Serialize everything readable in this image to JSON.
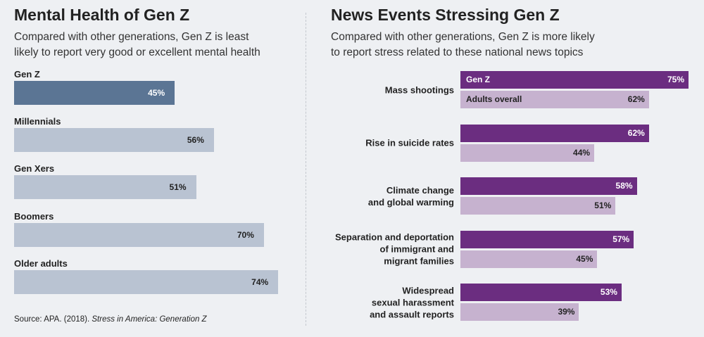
{
  "chart_data": [
    {
      "type": "bar",
      "orientation": "horizontal",
      "title": "Mental Health of Gen Z",
      "subtitle": "Compared with other generations, Gen Z is least\nlikely to report very good or excellent mental health",
      "categories": [
        "Gen Z",
        "Millennials",
        "Gen Xers",
        "Boomers",
        "Older adults"
      ],
      "values": [
        45,
        56,
        51,
        70,
        74
      ],
      "value_labels": [
        "45%",
        "56%",
        "51%",
        "70%",
        "74%"
      ],
      "colors": [
        "#5b7594",
        "#b9c3d2",
        "#b9c3d2",
        "#b9c3d2",
        "#b9c3d2"
      ],
      "source": "Source: APA. (2018).",
      "source_title": "Stress in America: Generation Z"
    },
    {
      "type": "bar",
      "orientation": "horizontal",
      "title": "News Events Stressing Gen Z",
      "subtitle": "Compared with other generations, Gen Z is more likely\nto report stress related to these national news topics",
      "categories": [
        "Mass shootings",
        "Rise in suicide rates",
        "Climate change\nand global warming",
        "Separation and deportation\nof immigrant and\nmigrant families",
        "Widespread\nsexual harassment\nand assault reports"
      ],
      "series": [
        {
          "name": "Gen Z",
          "color": "#6b2d80",
          "values": [
            75,
            62,
            58,
            57,
            53
          ],
          "value_labels": [
            "75%",
            "62%",
            "58%",
            "57%",
            "53%"
          ]
        },
        {
          "name": "Adults overall",
          "color": "#c6b2cf",
          "values": [
            62,
            44,
            51,
            45,
            39
          ],
          "value_labels": [
            "62%",
            "44%",
            "51%",
            "45%",
            "39%"
          ]
        }
      ]
    }
  ]
}
